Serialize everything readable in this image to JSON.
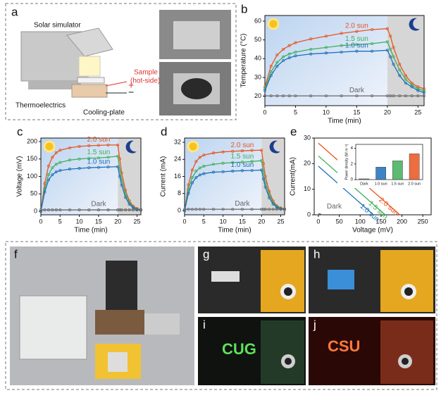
{
  "panels": {
    "a": {
      "letter": "a",
      "solar": "Solar simulator",
      "sample": [
        "Sample",
        "(hot-side)"
      ],
      "thermo": "Thermoelectrics",
      "cooling": "Cooling-plate",
      "plus": "+",
      "minus": "−"
    },
    "f": {
      "letter": "f"
    },
    "g": {
      "letter": "g"
    },
    "h": {
      "letter": "h"
    },
    "i": {
      "letter": "i",
      "sign": "CUG"
    },
    "j": {
      "letter": "j",
      "sign": "CSU"
    }
  },
  "chart_data": [
    {
      "type": "line",
      "panel": "b",
      "xlabel": "Time (min)",
      "ylabel": "Temperature (°C)",
      "markers": true,
      "x": [
        0,
        1,
        2,
        3,
        4,
        5,
        7.5,
        10,
        12.5,
        15,
        17.5,
        20,
        20.5,
        21,
        22,
        23,
        24,
        25,
        26
      ],
      "xlim": [
        0,
        26
      ],
      "ylim": [
        15,
        63
      ],
      "xticks": [
        0,
        5,
        10,
        15,
        20,
        25
      ],
      "yticks": [
        20,
        30,
        40,
        50,
        60
      ],
      "shaded_span": [
        0,
        20
      ],
      "series": [
        {
          "name": "2.0 sun",
          "color": "#e8541e",
          "values": [
            25,
            36,
            42,
            45,
            47,
            48.5,
            50.5,
            52,
            53.5,
            54.5,
            55.5,
            56,
            52,
            46,
            37,
            31,
            27,
            25,
            24
          ]
        },
        {
          "name": "1.5 sun",
          "color": "#3fae5a",
          "values": [
            24,
            33,
            38,
            41,
            42.5,
            43.5,
            45,
            46,
            47,
            47.5,
            48,
            49,
            45,
            41,
            34,
            29,
            26,
            24,
            23
          ]
        },
        {
          "name": "1.0 sun",
          "color": "#1f6fb8",
          "values": [
            23,
            31,
            36,
            39,
            40.5,
            41.5,
            42.5,
            43,
            43.5,
            44,
            44,
            44.5,
            41,
            37,
            31,
            27,
            25,
            23,
            22
          ]
        },
        {
          "name": "Dark",
          "color": "#666666",
          "values": [
            20.2,
            20.2,
            20.2,
            20.2,
            20.2,
            20.2,
            20.2,
            20.2,
            20.2,
            20.2,
            20.2,
            20.2,
            20.2,
            20.2,
            20.2,
            20.2,
            20.2,
            20.2,
            20.2
          ]
        }
      ]
    },
    {
      "type": "line",
      "panel": "c",
      "xlabel": "Time (min)",
      "ylabel": "Voltage (mV)",
      "markers": true,
      "x": [
        0,
        1,
        2,
        3,
        4,
        5,
        7.5,
        10,
        12.5,
        15,
        17.5,
        20,
        20.5,
        21,
        22,
        23,
        24,
        25,
        26
      ],
      "xlim": [
        0,
        26
      ],
      "ylim": [
        -10,
        210
      ],
      "xticks": [
        0,
        5,
        10,
        15,
        20,
        25
      ],
      "yticks": [
        0,
        50,
        100,
        150,
        200
      ],
      "shaded_span": [
        0,
        20
      ],
      "series": [
        {
          "name": "2.0 sun",
          "color": "#e8541e",
          "values": [
            0,
            80,
            130,
            155,
            168,
            175,
            182,
            186,
            188,
            189,
            190,
            190,
            150,
            110,
            60,
            30,
            15,
            8,
            5
          ]
        },
        {
          "name": "1.5 sun",
          "color": "#3fae5a",
          "values": [
            0,
            65,
            105,
            125,
            135,
            140,
            147,
            150,
            152,
            153,
            155,
            158,
            120,
            90,
            50,
            25,
            12,
            6,
            4
          ]
        },
        {
          "name": "1.0 sun",
          "color": "#1f6fb8",
          "values": [
            0,
            55,
            90,
            105,
            113,
            117,
            121,
            123,
            125,
            126,
            127,
            128,
            100,
            75,
            40,
            20,
            10,
            5,
            3
          ]
        },
        {
          "name": "Dark",
          "color": "#666666",
          "values": [
            4,
            4,
            4,
            4,
            4,
            4,
            4,
            4,
            4,
            4,
            4,
            4,
            4,
            4,
            4,
            4,
            4,
            4,
            4
          ]
        }
      ]
    },
    {
      "type": "line",
      "panel": "d",
      "xlabel": "Time (min)",
      "ylabel": "Current (mA)",
      "markers": true,
      "x": [
        0,
        1,
        2,
        3,
        4,
        5,
        7.5,
        10,
        12.5,
        15,
        17.5,
        20,
        20.5,
        21,
        22,
        23,
        24,
        25,
        26
      ],
      "xlim": [
        0,
        26
      ],
      "ylim": [
        -2,
        34
      ],
      "xticks": [
        0,
        5,
        10,
        15,
        20,
        25
      ],
      "yticks": [
        0,
        8,
        16,
        24,
        32
      ],
      "shaded_span": [
        0,
        20
      ],
      "series": [
        {
          "name": "2.0 sun",
          "color": "#e8541e",
          "values": [
            0,
            12,
            19,
            23,
            25,
            26,
            27,
            27.5,
            27.8,
            28,
            28.2,
            28.3,
            22,
            16,
            9,
            4.5,
            2.2,
            1.2,
            0.8
          ]
        },
        {
          "name": "1.5 sun",
          "color": "#3fae5a",
          "values": [
            0,
            10,
            15.5,
            18.5,
            20,
            20.8,
            21.7,
            22.2,
            22.5,
            22.7,
            23,
            23.4,
            18,
            13,
            7.5,
            3.7,
            1.8,
            1,
            0.6
          ]
        },
        {
          "name": "1.0 sun",
          "color": "#1f6fb8",
          "values": [
            0,
            8,
            13,
            15.5,
            16.7,
            17.3,
            18,
            18.2,
            18.5,
            18.7,
            18.8,
            19,
            14.8,
            11,
            6,
            3,
            1.5,
            0.8,
            0.5
          ]
        },
        {
          "name": "Dark",
          "color": "#666666",
          "values": [
            0.6,
            0.6,
            0.6,
            0.6,
            0.6,
            0.6,
            0.6,
            0.6,
            0.6,
            0.6,
            0.6,
            0.6,
            0.6,
            0.6,
            0.6,
            0.6,
            0.6,
            0.6,
            0.6
          ]
        }
      ]
    },
    {
      "type": "line",
      "panel": "e",
      "xlabel": "Voltage (mV)",
      "ylabel": "Current(mA)",
      "markers": false,
      "xlim": [
        -10,
        270
      ],
      "ylim": [
        0,
        30
      ],
      "xticks": [
        0,
        50,
        100,
        150,
        200,
        250
      ],
      "yticks": [
        0,
        10,
        20,
        30
      ],
      "series": [
        {
          "name": "2.0 sun",
          "color": "#e8541e",
          "x": [
            0,
            195
          ],
          "values": [
            28,
            0
          ]
        },
        {
          "name": "1.5 sun",
          "color": "#3fae5a",
          "x": [
            0,
            160
          ],
          "values": [
            23,
            0
          ]
        },
        {
          "name": "1.0 sun",
          "color": "#1f6fb8",
          "x": [
            0,
            132
          ],
          "values": [
            19,
            0
          ]
        },
        {
          "name": "Dark",
          "color": "#666666",
          "x": [
            0,
            10
          ],
          "values": [
            0.5,
            0
          ]
        }
      ]
    },
    {
      "type": "bar",
      "ylabel": "Power density (W m⁻²)",
      "categories": [
        "Dark",
        "1.0 sun",
        "1.5 sun",
        "2.0 sun"
      ],
      "values": [
        0.1,
        1.6,
        2.4,
        3.3
      ],
      "colors": [
        "#666666",
        "#1f6fb8",
        "#3fae5a",
        "#e8541e"
      ],
      "ylim": [
        0,
        4.5
      ],
      "yticks": [
        0,
        2,
        4
      ]
    }
  ]
}
